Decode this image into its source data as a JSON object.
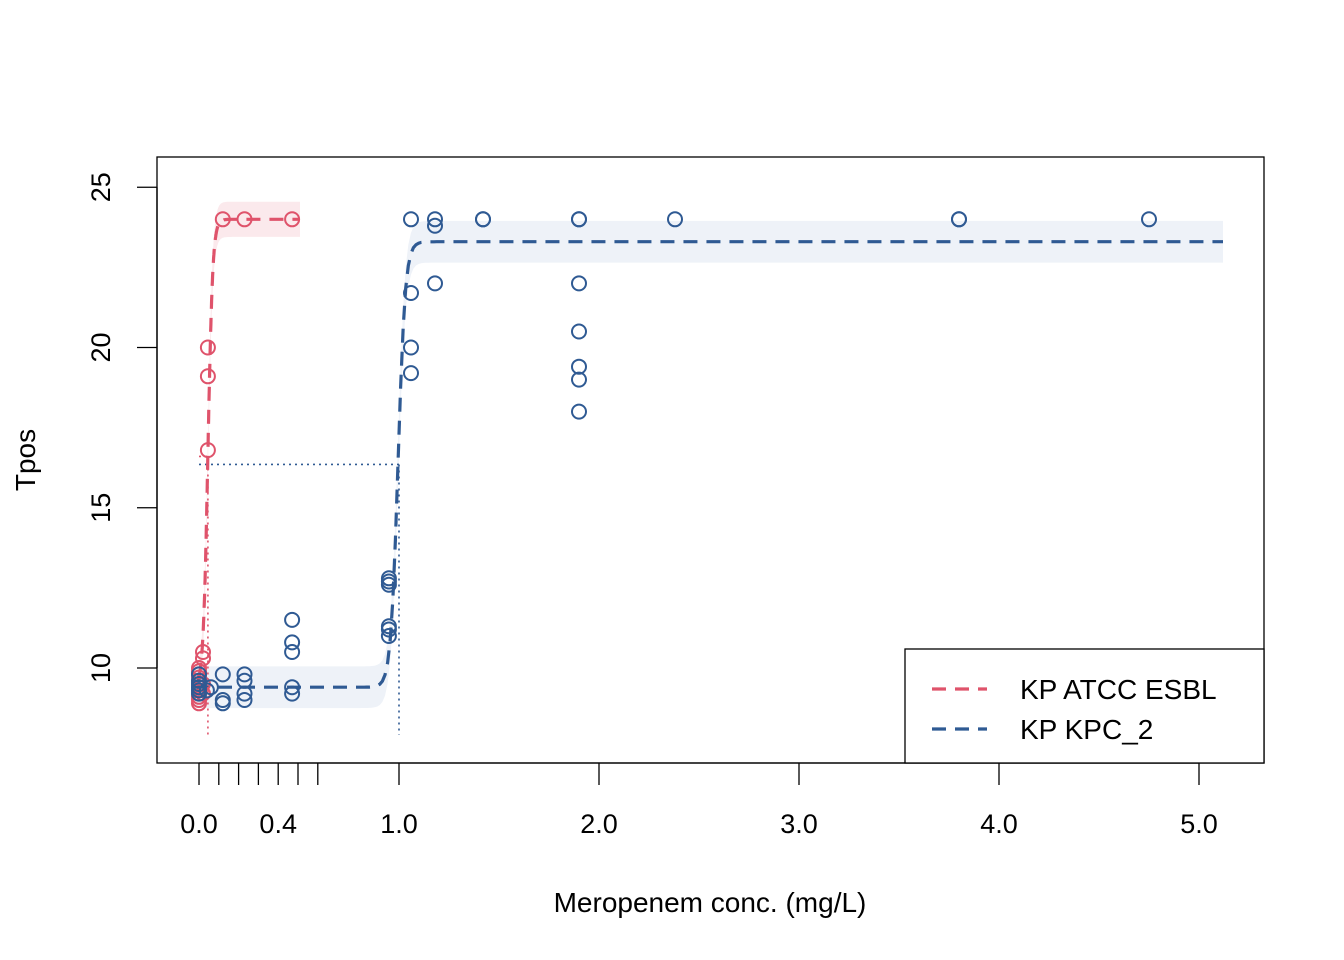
{
  "chart_data": {
    "type": "scatter",
    "title": "",
    "xlabel": "Meropenem conc. (mg/L)",
    "ylabel": "Tpos",
    "xlim": [
      -0.2,
      5.33
    ],
    "ylim": [
      7.0,
      25.9
    ],
    "x_ticks": [
      0.0,
      0.1,
      0.2,
      0.3,
      0.4,
      0.5,
      0.6,
      1.0,
      2.0,
      3.0,
      4.0,
      5.0
    ],
    "x_tick_labels": [
      {
        "value": 0.0,
        "label": "0.0"
      },
      {
        "value": 0.4,
        "label": "0.4"
      },
      {
        "value": 1.0,
        "label": "1.0"
      },
      {
        "value": 2.0,
        "label": "2.0"
      },
      {
        "value": 3.0,
        "label": "3.0"
      },
      {
        "value": 4.0,
        "label": "4.0"
      },
      {
        "value": 5.0,
        "label": "5.0"
      }
    ],
    "y_ticks": [
      10,
      15,
      20,
      25
    ],
    "y_tick_labels": [
      "10",
      "15",
      "20",
      "25"
    ],
    "grid": false,
    "legend": {
      "position": "bottom-right",
      "entries": [
        {
          "label": "KP ATCC ESBL",
          "color": "#DF536B",
          "style": "dashed"
        },
        {
          "label": "KP KPC_2",
          "color": "#2F5A93",
          "style": "dashed"
        }
      ]
    },
    "series": [
      {
        "name": "KP ATCC ESBL",
        "color": "#DF536B",
        "band_color": "#FBE9EC",
        "points": [
          [
            0.0,
            8.9
          ],
          [
            0.0,
            9.0
          ],
          [
            0.0,
            9.1
          ],
          [
            0.0,
            9.2
          ],
          [
            0.0,
            9.3
          ],
          [
            0.0,
            9.4
          ],
          [
            0.0,
            9.5
          ],
          [
            0.0,
            9.6
          ],
          [
            0.0,
            9.7
          ],
          [
            0.0,
            9.8
          ],
          [
            0.0,
            9.9
          ],
          [
            0.0,
            10.0
          ],
          [
            0.02,
            10.3
          ],
          [
            0.02,
            10.5
          ],
          [
            0.02,
            9.2
          ],
          [
            0.02,
            9.5
          ],
          [
            0.045,
            16.8
          ],
          [
            0.045,
            19.1
          ],
          [
            0.045,
            20.0
          ],
          [
            0.12,
            24.0
          ],
          [
            0.23,
            24.0
          ],
          [
            0.47,
            24.0
          ]
        ],
        "fit": {
          "lower": 9.4,
          "upper": 24.0,
          "midpoint": 0.045,
          "scale": 0.012,
          "x_from": 0.0,
          "x_to": 0.51,
          "band_halfwidth": 0.55
        },
        "threshold": {
          "x": 0.045,
          "y": 16.6,
          "x_from": 0.0
        }
      },
      {
        "name": "KP KPC_2",
        "color": "#2F5A93",
        "band_color": "#EEF2F8",
        "points": [
          [
            0.0,
            9.2
          ],
          [
            0.0,
            9.3
          ],
          [
            0.0,
            9.4
          ],
          [
            0.0,
            9.5
          ],
          [
            0.0,
            9.6
          ],
          [
            0.0,
            9.8
          ],
          [
            0.04,
            9.3
          ],
          [
            0.06,
            9.4
          ],
          [
            0.12,
            8.9
          ],
          [
            0.12,
            9.0
          ],
          [
            0.12,
            9.8
          ],
          [
            0.23,
            9.0
          ],
          [
            0.23,
            9.2
          ],
          [
            0.23,
            9.6
          ],
          [
            0.23,
            9.8
          ],
          [
            0.47,
            9.2
          ],
          [
            0.47,
            9.4
          ],
          [
            0.47,
            10.5
          ],
          [
            0.47,
            10.8
          ],
          [
            0.47,
            11.5
          ],
          [
            0.95,
            11.0
          ],
          [
            0.95,
            11.2
          ],
          [
            0.95,
            11.3
          ],
          [
            0.95,
            12.6
          ],
          [
            0.95,
            12.7
          ],
          [
            0.95,
            12.8
          ],
          [
            1.06,
            24.0
          ],
          [
            1.06,
            21.7
          ],
          [
            1.06,
            20.0
          ],
          [
            1.06,
            19.2
          ],
          [
            1.18,
            24.0
          ],
          [
            1.18,
            23.8
          ],
          [
            1.18,
            22.0
          ],
          [
            1.42,
            24.0
          ],
          [
            1.42,
            24.0
          ],
          [
            1.9,
            24.0
          ],
          [
            1.9,
            24.0
          ],
          [
            1.9,
            22.0
          ],
          [
            1.9,
            20.5
          ],
          [
            1.9,
            19.4
          ],
          [
            1.9,
            19.0
          ],
          [
            1.9,
            18.0
          ],
          [
            2.38,
            24.0
          ],
          [
            3.8,
            24.0
          ],
          [
            3.8,
            24.0
          ],
          [
            4.75,
            24.0
          ]
        ],
        "fit": {
          "lower": 9.4,
          "upper": 23.3,
          "midpoint": 0.995,
          "scale": 0.018,
          "x_from": -0.02,
          "x_to": 5.12,
          "band_halfwidth": 0.65
        },
        "threshold": {
          "x": 1.0,
          "y": 16.35,
          "x_from": 0.0
        }
      }
    ]
  }
}
